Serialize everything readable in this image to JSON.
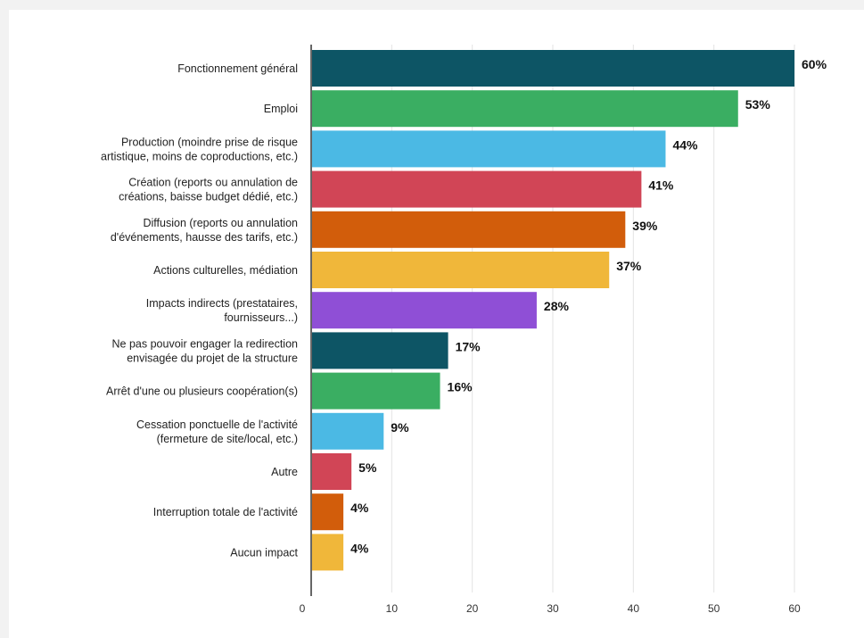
{
  "chart_data": {
    "type": "bar",
    "orientation": "horizontal",
    "title": "",
    "xlabel": "",
    "ylabel": "",
    "xlim": [
      0,
      60
    ],
    "x_ticks": [
      0,
      10,
      20,
      30,
      40,
      50,
      60
    ],
    "grid": true,
    "value_suffix": "%",
    "categories": [
      [
        "Fonctionnement général"
      ],
      [
        "Emploi"
      ],
      [
        "Production (moindre prise de risque",
        "artistique, moins de coproductions, etc.)"
      ],
      [
        "Création (reports ou annulation de",
        "créations, baisse budget dédié, etc.)"
      ],
      [
        "Diffusion (reports ou annulation",
        "d'événements, hausse des tarifs, etc.)"
      ],
      [
        "Actions culturelles, médiation"
      ],
      [
        "Impacts indirects (prestataires,",
        "fournisseurs...)"
      ],
      [
        "Ne pas pouvoir engager la redirection",
        "envisagée du projet de la structure"
      ],
      [
        "Arrêt d'une ou plusieurs coopération(s)"
      ],
      [
        "Cessation ponctuelle de l'activité",
        "(fermeture de site/local, etc.)"
      ],
      [
        "Autre"
      ],
      [
        "Interruption totale de l'activité"
      ],
      [
        "Aucun impact"
      ]
    ],
    "values": [
      60,
      53,
      44,
      41,
      39,
      37,
      28,
      17,
      16,
      9,
      5,
      4,
      4
    ],
    "value_labels": [
      "60%",
      "53%",
      "44%",
      "41%",
      "39%",
      "37%",
      "28%",
      "17%",
      "16%",
      "9%",
      "5%",
      "4%",
      "4%"
    ],
    "colors": [
      "#0d5565",
      "#3aae62",
      "#4bb9e4",
      "#d14556",
      "#d25d0b",
      "#f0b73a",
      "#8f4fd6",
      "#0d5565",
      "#3aae62",
      "#4bb9e4",
      "#d14556",
      "#d25d0b",
      "#f0b73a"
    ]
  }
}
